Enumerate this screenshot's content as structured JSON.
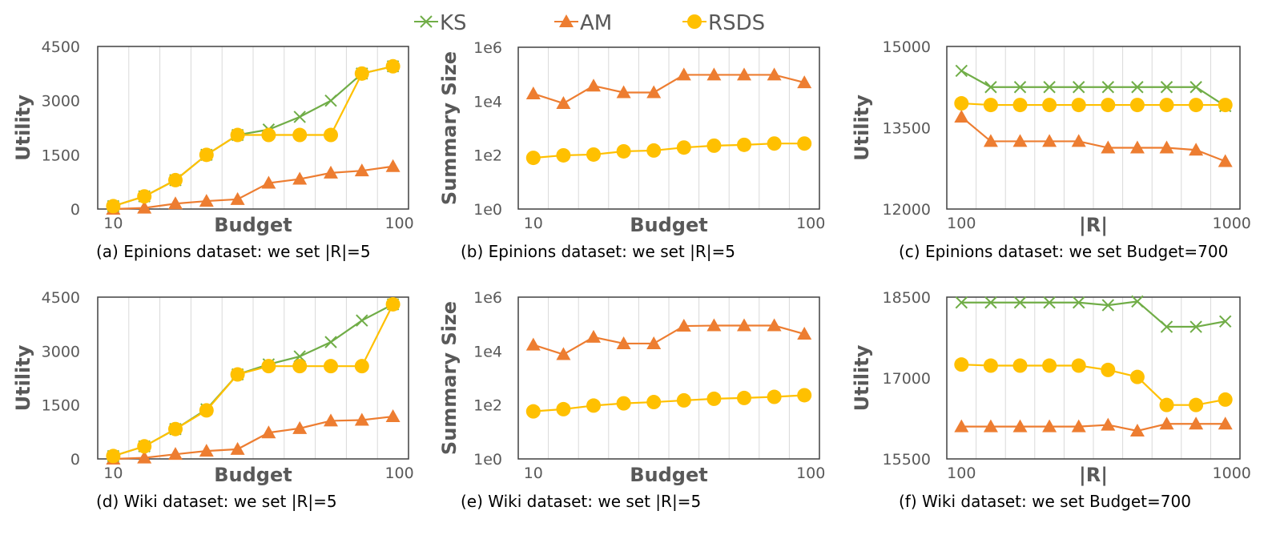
{
  "legend": {
    "position": "top",
    "items": [
      {
        "name": "KS",
        "color": "#70AD47",
        "marker": "x"
      },
      {
        "name": "AM",
        "color": "#ED7D31",
        "marker": "triangle"
      },
      {
        "name": "RSDS",
        "color": "#FFC000",
        "marker": "circle"
      }
    ]
  },
  "chart_data": [
    {
      "id": "a",
      "type": "line",
      "caption": "(a) Epinions dataset: we set |R|=5",
      "xlabel": "Budget",
      "ylabel": "Utility",
      "x_tick_labels": [
        "10",
        "100"
      ],
      "x": [
        10,
        20,
        30,
        40,
        50,
        60,
        70,
        80,
        90,
        100
      ],
      "yscale": "linear",
      "ylim": [
        0,
        4500
      ],
      "yticks": [
        "0",
        "1500",
        "3000",
        "4500"
      ],
      "grid": "vertical",
      "series": [
        {
          "name": "KS",
          "values": [
            80,
            350,
            800,
            1500,
            2050,
            2200,
            2550,
            3000,
            3750,
            3950
          ]
        },
        {
          "name": "AM",
          "values": [
            0,
            30,
            150,
            220,
            270,
            720,
            830,
            1000,
            1060,
            1180
          ]
        },
        {
          "name": "RSDS",
          "values": [
            80,
            350,
            800,
            1500,
            2050,
            2050,
            2050,
            2050,
            3750,
            3950
          ]
        }
      ]
    },
    {
      "id": "b",
      "type": "line",
      "caption": "(b) Epinions dataset: we set |R|=5",
      "xlabel": "Budget",
      "ylabel": "Summary Size",
      "x_tick_labels": [
        "10",
        "100"
      ],
      "x": [
        10,
        20,
        30,
        40,
        50,
        60,
        70,
        80,
        90,
        100
      ],
      "yscale": "log",
      "ylim": [
        1,
        1000000
      ],
      "yticks": [
        "1e0",
        "1e2",
        "1e4",
        "1e6"
      ],
      "grid": "vertical",
      "series": [
        {
          "name": "AM",
          "values": [
            19000,
            8300,
            37000,
            21000,
            21000,
            95000,
            95000,
            95000,
            95000,
            49000
          ]
        },
        {
          "name": "RSDS",
          "values": [
            79,
            98,
            105,
            138,
            148,
            191,
            224,
            240,
            269,
            269
          ]
        }
      ]
    },
    {
      "id": "c",
      "type": "line",
      "caption": "(c) Epinions dataset: we set Budget=700",
      "xlabel": "|R|",
      "ylabel": "Utility",
      "x_tick_labels": [
        "100",
        "1000"
      ],
      "x": [
        100,
        200,
        300,
        400,
        500,
        600,
        700,
        800,
        900,
        1000
      ],
      "yscale": "linear",
      "ylim": [
        12000,
        15000
      ],
      "yticks": [
        "12000",
        "13500",
        "15000"
      ],
      "grid": "vertical",
      "series": [
        {
          "name": "KS",
          "values": [
            14550,
            14250,
            14250,
            14250,
            14250,
            14250,
            14250,
            14250,
            14250,
            13900
          ]
        },
        {
          "name": "AM",
          "values": [
            13700,
            13250,
            13250,
            13250,
            13250,
            13130,
            13130,
            13130,
            13090,
            12880
          ]
        },
        {
          "name": "RSDS",
          "values": [
            13950,
            13920,
            13920,
            13920,
            13920,
            13920,
            13920,
            13920,
            13920,
            13920
          ]
        }
      ]
    },
    {
      "id": "d",
      "type": "line",
      "caption": "(d) Wiki dataset: we set |R|=5",
      "xlabel": "Budget",
      "ylabel": "Utility",
      "x_tick_labels": [
        "10",
        "100"
      ],
      "x": [
        10,
        20,
        30,
        40,
        50,
        60,
        70,
        80,
        90,
        100
      ],
      "yscale": "linear",
      "ylim": [
        0,
        4500
      ],
      "yticks": [
        "0",
        "1500",
        "3000",
        "4500"
      ],
      "grid": "vertical",
      "series": [
        {
          "name": "KS",
          "values": [
            80,
            350,
            830,
            1380,
            2350,
            2630,
            2850,
            3250,
            3850,
            4300
          ]
        },
        {
          "name": "AM",
          "values": [
            0,
            30,
            130,
            220,
            270,
            730,
            850,
            1060,
            1080,
            1180
          ]
        },
        {
          "name": "RSDS",
          "values": [
            80,
            350,
            830,
            1350,
            2350,
            2580,
            2580,
            2580,
            2580,
            4300
          ]
        }
      ]
    },
    {
      "id": "e",
      "type": "line",
      "caption": "(e) Wiki dataset: we set |R|=5",
      "xlabel": "Budget",
      "ylabel": "Summary Size",
      "x_tick_labels": [
        "10",
        "100"
      ],
      "x": [
        10,
        20,
        30,
        40,
        50,
        60,
        70,
        80,
        90,
        100
      ],
      "yscale": "log",
      "ylim": [
        1,
        1000000
      ],
      "yticks": [
        "1e0",
        "1e2",
        "1e4",
        "1e6"
      ],
      "grid": "vertical",
      "series": [
        {
          "name": "AM",
          "values": [
            17000,
            7500,
            33000,
            19000,
            19000,
            85000,
            88000,
            88000,
            88000,
            43000
          ]
        },
        {
          "name": "RSDS",
          "values": [
            58,
            70,
            95,
            115,
            128,
            148,
            170,
            182,
            200,
            230
          ]
        }
      ]
    },
    {
      "id": "f",
      "type": "line",
      "caption": "(f) Wiki dataset: we set Budget=700",
      "xlabel": "|R|",
      "ylabel": "Utility",
      "x_tick_labels": [
        "100",
        "1000"
      ],
      "x": [
        100,
        200,
        300,
        400,
        500,
        600,
        700,
        800,
        900,
        1000
      ],
      "yscale": "linear",
      "ylim": [
        15500,
        18500
      ],
      "yticks": [
        "15500",
        "17000",
        "18500"
      ],
      "grid": "vertical",
      "series": [
        {
          "name": "KS",
          "values": [
            18400,
            18400,
            18400,
            18400,
            18400,
            18350,
            18420,
            17950,
            17950,
            18050
          ]
        },
        {
          "name": "AM",
          "values": [
            16100,
            16100,
            16100,
            16100,
            16100,
            16130,
            16020,
            16150,
            16150,
            16150
          ]
        },
        {
          "name": "RSDS",
          "values": [
            17250,
            17230,
            17230,
            17230,
            17230,
            17150,
            17020,
            16500,
            16500,
            16600
          ]
        }
      ]
    }
  ]
}
